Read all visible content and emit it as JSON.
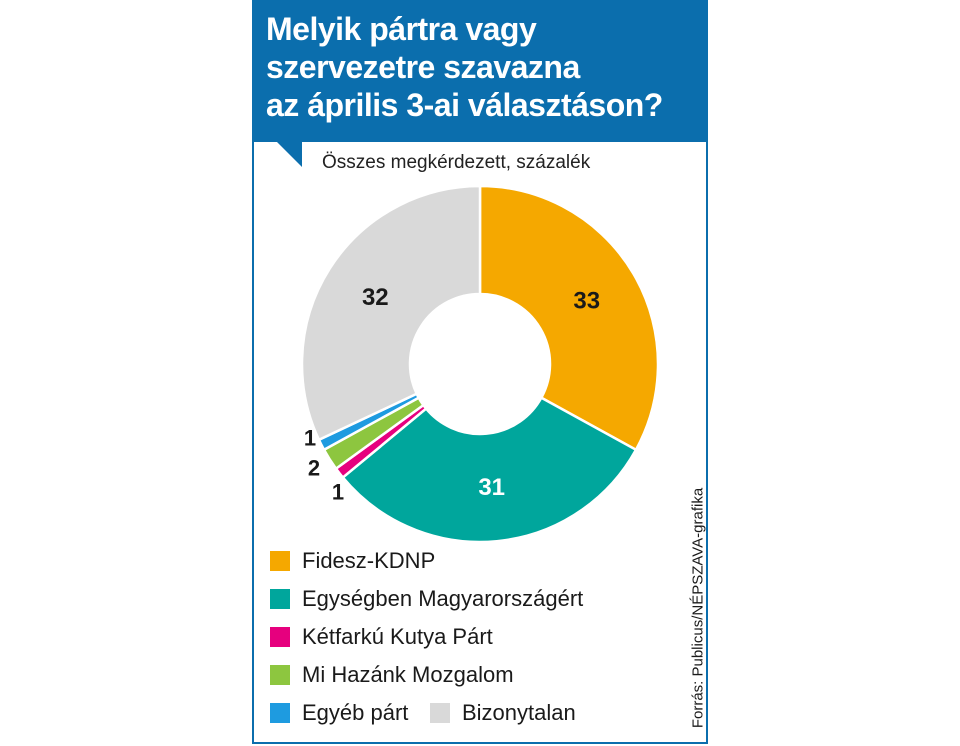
{
  "header": {
    "title_lines": [
      "Melyik pártra vagy",
      "szervezetre szavazna",
      "az április 3-ai választáson?"
    ],
    "subtitle": "Összes megkérdezett, százalék"
  },
  "source": "Forrás: Publicus/NÉPSZAVA-grafika",
  "colors": {
    "header_bg": "#0b6ead"
  },
  "chart_data": {
    "type": "pie",
    "donut": true,
    "title": "Melyik pártra vagy szervezetre szavazna az április 3-ai választáson?",
    "subtitle": "Összes megkérdezett, százalék",
    "legend_position": "bottom",
    "slices": [
      {
        "name": "Fidesz-KDNP",
        "value": 33,
        "label": "33",
        "color": "#f5a800",
        "label_color": "#1a1a1a"
      },
      {
        "name": "Egységben Magyarországért",
        "value": 31,
        "label": "31",
        "color": "#00a69c",
        "label_color": "#ffffff"
      },
      {
        "name": "Kétfarkú Kutya Párt",
        "value": 1,
        "label": "1",
        "color": "#e6007e",
        "label_color": "#1a1a1a"
      },
      {
        "name": "Mi Hazánk Mozgalom",
        "value": 2,
        "label": "2",
        "color": "#8dc63f",
        "label_color": "#1a1a1a"
      },
      {
        "name": "Egyéb párt",
        "value": 1,
        "label": "1",
        "color": "#1e9be0",
        "label_color": "#1a1a1a"
      },
      {
        "name": "Bizonytalan",
        "value": 32,
        "label": "32",
        "color": "#d9d9d9",
        "label_color": "#1a1a1a"
      }
    ],
    "legend_order": [
      "Fidesz-KDNP",
      "Egységben Magyarországért",
      "Kétfarkú Kutya Párt",
      "Mi Hazánk Mozgalom",
      "Egyéb párt",
      "Bizonytalan"
    ]
  }
}
